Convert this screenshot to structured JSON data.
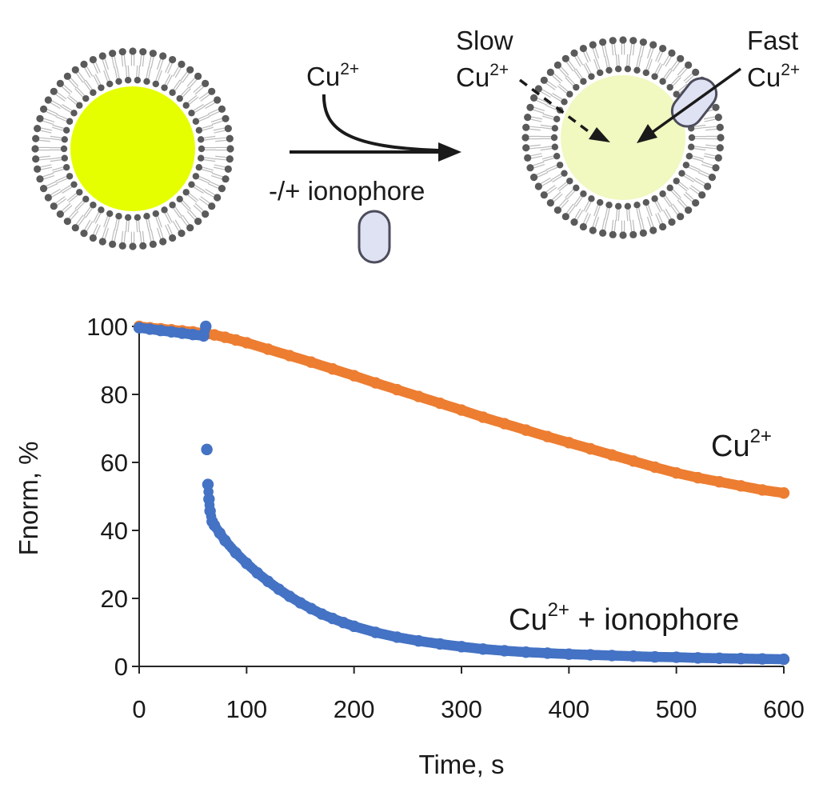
{
  "diagram": {
    "reagent": {
      "base": "Cu",
      "sup": "2+"
    },
    "condition": "-/+ ionophore",
    "slow": {
      "word": "Slow",
      "base": "Cu",
      "sup": "2+"
    },
    "fast": {
      "word": "Fast",
      "base": "Cu",
      "sup": "2+"
    },
    "colors": {
      "head_group": "#5a5a5a",
      "tail": "#bbbbbb",
      "core_bright": "#e6ff00",
      "core_quenched": "#f1f8c0",
      "ionophore_fill": "#dfe2f2",
      "ionophore_stroke": "#4c4c5c",
      "arrow": "#1a1a1a"
    }
  },
  "chart_data": {
    "type": "scatter",
    "xlabel": "Time, s",
    "ylabel": "Fnorm, %",
    "xlim": [
      0,
      600
    ],
    "ylim": [
      0,
      100
    ],
    "xticks": [
      "0",
      "100",
      "200",
      "300",
      "400",
      "500",
      "600"
    ],
    "yticks": [
      "0",
      "20",
      "40",
      "60",
      "80",
      "100"
    ],
    "grid": false,
    "legend": "none",
    "series": [
      {
        "name": "Cu2+",
        "label_base": "Cu",
        "label_sup": "2+",
        "label_suffix": "",
        "color": "#ed7d31",
        "x": [
          0,
          10,
          20,
          30,
          40,
          50,
          60,
          70,
          80,
          90,
          100,
          120,
          140,
          160,
          180,
          200,
          220,
          240,
          260,
          280,
          300,
          320,
          340,
          360,
          380,
          400,
          420,
          440,
          460,
          480,
          500,
          520,
          540,
          560,
          580,
          600
        ],
        "y": [
          100,
          99.6,
          99.3,
          99,
          98.7,
          98.4,
          98,
          97.5,
          96.8,
          96,
          95.2,
          93.3,
          91.4,
          89.5,
          87.5,
          85.5,
          83.4,
          81.4,
          79.4,
          77.4,
          75.4,
          73.3,
          71.4,
          69.5,
          67.6,
          65.8,
          64,
          62.2,
          60.4,
          58.6,
          56.9,
          55.5,
          54.3,
          53.1,
          51.9,
          51
        ]
      },
      {
        "name": "Cu2+ + ionophore",
        "label_base": "Cu",
        "label_sup": "2+",
        "label_suffix": " + ionophore",
        "color": "#4472c4",
        "x": [
          0,
          10,
          20,
          30,
          40,
          50,
          60,
          62,
          63,
          64,
          65,
          66,
          68,
          70,
          75,
          80,
          90,
          100,
          110,
          120,
          130,
          140,
          150,
          160,
          170,
          180,
          190,
          200,
          220,
          240,
          260,
          280,
          300,
          320,
          340,
          360,
          380,
          400,
          420,
          440,
          460,
          480,
          500,
          520,
          540,
          560,
          580,
          600
        ],
        "y": [
          99.6,
          99.2,
          98.8,
          98.4,
          98,
          97.6,
          97.2,
          100,
          63.8,
          53.5,
          49.2,
          45.7,
          42.6,
          41.5,
          39.2,
          37,
          33.4,
          30.3,
          27.5,
          25,
          22.7,
          20.6,
          18.7,
          17,
          15.4,
          14.1,
          12.9,
          11.8,
          10,
          8.6,
          7.5,
          6.6,
          5.8,
          5.1,
          4.6,
          4.2,
          3.9,
          3.6,
          3.4,
          3.2,
          3.0,
          2.8,
          2.7,
          2.5,
          2.4,
          2.3,
          2.2,
          2.1
        ]
      }
    ]
  }
}
